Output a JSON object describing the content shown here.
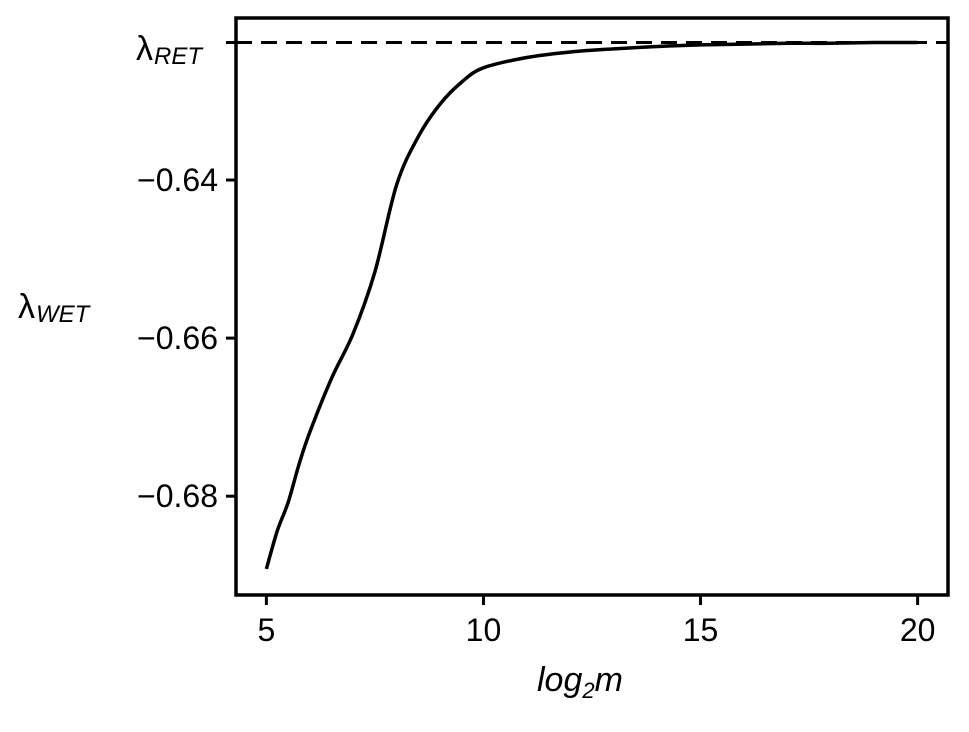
{
  "chart_data": {
    "type": "line",
    "xlabel": {
      "base": "log",
      "subscript": "2",
      "rest": "m"
    },
    "ylabel": {
      "symbol": "λ",
      "subscript": "WET"
    },
    "reference_line": {
      "symbol": "λ",
      "subscript": "RET",
      "value": -0.6226,
      "style": "dashed"
    },
    "xlim": [
      4.3,
      20.7
    ],
    "ylim": [
      -0.6925,
      -0.6195
    ],
    "x_ticks": [
      {
        "value": 5,
        "label": "5"
      },
      {
        "value": 10,
        "label": "10"
      },
      {
        "value": 15,
        "label": "15"
      },
      {
        "value": 20,
        "label": "20"
      }
    ],
    "y_ticks": [
      {
        "value": -0.64,
        "label": "−0.64"
      },
      {
        "value": -0.66,
        "label": "−0.66"
      },
      {
        "value": -0.68,
        "label": "−0.68"
      }
    ],
    "grid": false,
    "series": [
      {
        "color": "#000000",
        "style": "solid",
        "x": [
          5,
          5.25,
          5.5,
          5.75,
          6,
          6.5,
          7,
          7.5,
          8,
          8.5,
          9,
          9.5,
          10,
          11,
          12,
          13,
          14,
          15,
          16,
          17,
          18,
          19,
          20
        ],
        "y": [
          -0.6892,
          -0.6844,
          -0.6808,
          -0.676,
          -0.6719,
          -0.6651,
          -0.6594,
          -0.6516,
          -0.6406,
          -0.6345,
          -0.6304,
          -0.6276,
          -0.6258,
          -0.6245,
          -0.6238,
          -0.6234,
          -0.6231,
          -0.6229,
          -0.6228,
          -0.6227,
          -0.6227,
          -0.6226,
          -0.6226
        ]
      }
    ]
  }
}
